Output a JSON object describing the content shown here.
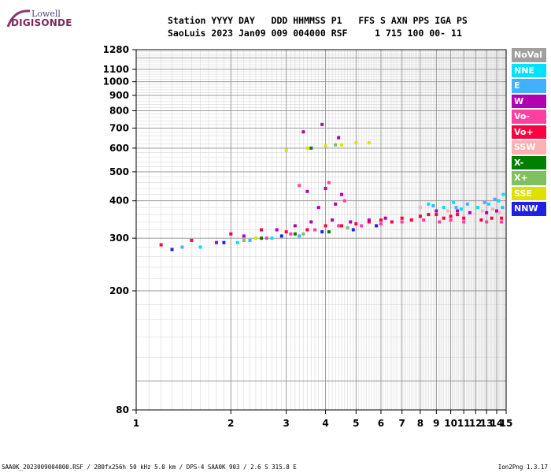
{
  "logo": {
    "top_text": "Lowell",
    "main_text": "DIGISONDE"
  },
  "header": {
    "line1": "Station YYYY DAY   DDD HHMMSS P1   FFS S AXN PPS IGA PS",
    "line2": "SaoLuis 2023 Jan09 009 004000 RSF     1 715 100 00- 11"
  },
  "legend": [
    {
      "label": "NoVal",
      "color": "#a0a0a0",
      "text_color": "#ffffff"
    },
    {
      "label": "NNE",
      "color": "#00e0ff",
      "text_color": "#ffffff"
    },
    {
      "label": "E",
      "color": "#40b0ff",
      "text_color": "#ffffff"
    },
    {
      "label": "W",
      "color": "#b000b0",
      "text_color": "#ffffff"
    },
    {
      "label": "Vo-",
      "color": "#ff40a0",
      "text_color": "#ffffff"
    },
    {
      "label": "Vo+",
      "color": "#ff0040",
      "text_color": "#ffffff"
    },
    {
      "label": "SSW",
      "color": "#ffb0b0",
      "text_color": "#ffffff"
    },
    {
      "label": "X-",
      "color": "#008000",
      "text_color": "#ffffff"
    },
    {
      "label": "X+",
      "color": "#80c060",
      "text_color": "#ffffff"
    },
    {
      "label": "SSE",
      "color": "#e0e000",
      "text_color": "#ffffff"
    },
    {
      "label": "NNW",
      "color": "#2020e0",
      "text_color": "#ffffff"
    }
  ],
  "footer": {
    "left": "SAA0K_2023009004000.RSF / 280fx256h 50 kHz 5.0 km / DPS-4 SAA0K 903 / 2.6 S 315.8 E",
    "right": "Ion2Png 1.3.17"
  },
  "chart_data": {
    "type": "scatter",
    "x_scale": "log",
    "y_scale": "log",
    "xlim": [
      1,
      15
    ],
    "ylim": [
      80,
      1280
    ],
    "x_ticks": [
      "1",
      "2",
      "3",
      "4",
      "5",
      "6",
      "7",
      "8",
      "9",
      "10",
      "11",
      "12",
      "13",
      "14",
      "15"
    ],
    "y_ticks": [
      "80",
      "200",
      "300",
      "400",
      "500",
      "600",
      "700",
      "800",
      "900",
      "1000",
      "1100",
      "1280"
    ],
    "series": [
      {
        "mode": "Vo+",
        "points": [
          [
            1.2,
            285
          ],
          [
            1.5,
            295
          ],
          [
            2,
            310
          ],
          [
            2.5,
            320
          ],
          [
            3,
            315
          ],
          [
            3.5,
            320
          ],
          [
            4,
            330
          ],
          [
            4.5,
            330
          ],
          [
            5,
            335
          ],
          [
            5.5,
            340
          ],
          [
            6,
            345
          ],
          [
            6.5,
            340
          ],
          [
            7,
            350
          ],
          [
            7.5,
            345
          ],
          [
            8,
            355
          ],
          [
            8.5,
            360
          ],
          [
            9,
            360
          ],
          [
            9.5,
            350
          ],
          [
            10,
            355
          ],
          [
            10.5,
            360
          ],
          [
            11,
            350
          ],
          [
            12.5,
            345
          ],
          [
            13.5,
            350
          ],
          [
            14.5,
            350
          ]
        ]
      },
      {
        "mode": "W",
        "points": [
          [
            1.8,
            290
          ],
          [
            2.2,
            305
          ],
          [
            2.8,
            320
          ],
          [
            3.2,
            330
          ],
          [
            3.6,
            340
          ],
          [
            4.2,
            345
          ],
          [
            4.8,
            340
          ],
          [
            5.5,
            345
          ],
          [
            6.2,
            350
          ],
          [
            3.5,
            430
          ],
          [
            4,
            440
          ],
          [
            4.5,
            420
          ],
          [
            3.8,
            380
          ],
          [
            4.3,
            390
          ],
          [
            9,
            370
          ],
          [
            10.5,
            370
          ],
          [
            11.5,
            365
          ],
          [
            13,
            365
          ],
          [
            14,
            370
          ],
          [
            3.4,
            680
          ],
          [
            3.9,
            720
          ],
          [
            4.4,
            650
          ]
        ]
      },
      {
        "mode": "Vo-",
        "points": [
          [
            2.6,
            300
          ],
          [
            3.1,
            310
          ],
          [
            3.7,
            320
          ],
          [
            4.4,
            330
          ],
          [
            5.2,
            330
          ],
          [
            6,
            335
          ],
          [
            7,
            340
          ],
          [
            8.2,
            345
          ],
          [
            9.2,
            340
          ],
          [
            10,
            345
          ],
          [
            11,
            340
          ],
          [
            13,
            340
          ],
          [
            14.5,
            340
          ],
          [
            3.3,
            450
          ],
          [
            4.1,
            460
          ],
          [
            4.6,
            400
          ]
        ]
      },
      {
        "mode": "NNE",
        "points": [
          [
            1.6,
            280
          ],
          [
            2.1,
            290
          ],
          [
            2.7,
            300
          ],
          [
            8.5,
            390
          ],
          [
            9.5,
            380
          ],
          [
            10.2,
            395
          ],
          [
            10.8,
            375
          ],
          [
            12.2,
            380
          ],
          [
            13.2,
            390
          ],
          [
            14.2,
            400
          ],
          [
            14.7,
            420
          ]
        ]
      },
      {
        "mode": "E",
        "points": [
          [
            1.4,
            280
          ],
          [
            2.3,
            295
          ],
          [
            3.3,
            305
          ],
          [
            8.8,
            385
          ],
          [
            10.4,
            380
          ],
          [
            11.3,
            390
          ],
          [
            12.8,
            395
          ],
          [
            13.8,
            405
          ],
          [
            14.6,
            380
          ]
        ]
      },
      {
        "mode": "SSE",
        "points": [
          [
            2.4,
            300
          ],
          [
            3,
            590
          ],
          [
            3.5,
            600
          ],
          [
            4,
            610
          ],
          [
            4.5,
            615
          ],
          [
            5,
            625
          ],
          [
            5.5,
            625
          ]
        ]
      },
      {
        "mode": "NNW",
        "points": [
          [
            1.3,
            275
          ],
          [
            1.9,
            290
          ],
          [
            2.9,
            305
          ],
          [
            3.9,
            315
          ],
          [
            4.9,
            320
          ],
          [
            5.8,
            330
          ]
        ]
      },
      {
        "mode": "X-",
        "points": [
          [
            2.5,
            300
          ],
          [
            3.2,
            310
          ],
          [
            4.1,
            315
          ],
          [
            3.6,
            600
          ]
        ]
      },
      {
        "mode": "X+",
        "points": [
          [
            2.2,
            295
          ],
          [
            3.4,
            310
          ],
          [
            4.7,
            325
          ],
          [
            4.3,
            615
          ]
        ]
      },
      {
        "mode": "SSW",
        "points": [
          [
            12.6,
            370
          ],
          [
            13.6,
            375
          ],
          [
            14.3,
            365
          ],
          [
            8,
            380
          ],
          [
            9.8,
            370
          ]
        ]
      }
    ]
  }
}
